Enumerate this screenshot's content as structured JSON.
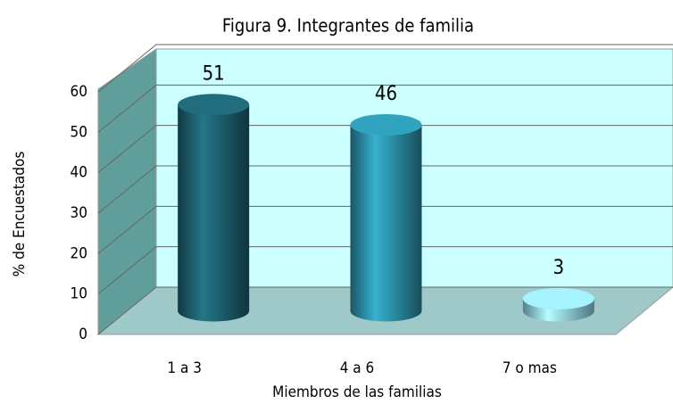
{
  "chart_data": {
    "type": "bar3d",
    "title": "Figura 9. Integrantes de familia",
    "categories": [
      "1 a 3",
      "4 a 6",
      "7 o mas"
    ],
    "values": [
      51,
      46,
      3
    ],
    "colors": [
      "#1d5f6e",
      "#2b8ea6",
      "#8fd3ea"
    ],
    "ylim": [
      0,
      60
    ],
    "yticks": [
      0,
      10,
      20,
      30,
      40,
      50,
      60
    ],
    "grid": true,
    "y_label": "% de Encuestados",
    "x_label": "Miembros de las familias"
  }
}
